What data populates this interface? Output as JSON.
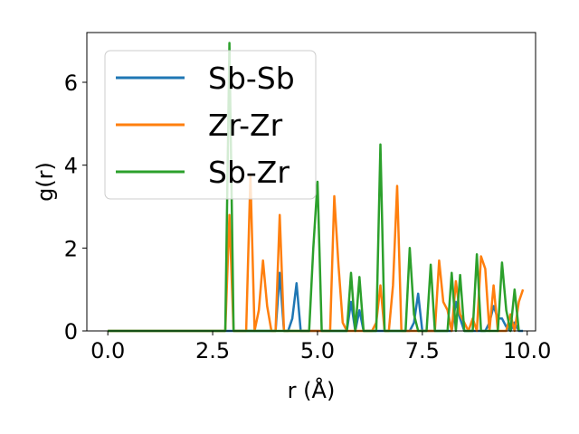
{
  "chart_data": {
    "type": "line",
    "xlabel": "r (Å)",
    "ylabel": "g(r)",
    "xlim": [
      -0.5,
      10.2
    ],
    "ylim": [
      0,
      7.2
    ],
    "xticks": [
      "0.0",
      "2.5",
      "5.0",
      "7.5",
      "10.0"
    ],
    "yticks": [
      "0",
      "2",
      "4",
      "6"
    ],
    "legend_position": "top-left",
    "series": [
      {
        "name": "Sb-Sb",
        "color": "#1f77b4",
        "x": [
          0,
          2.8,
          4.0,
          4.1,
          4.2,
          4.3,
          4.4,
          4.5,
          4.6,
          4.7,
          5.7,
          5.8,
          5.9,
          6.0,
          6.1,
          6.2,
          7.2,
          7.3,
          7.4,
          7.5,
          7.6,
          8.2,
          8.3,
          8.4,
          8.5,
          9.0,
          9.1,
          9.2,
          9.3,
          9.4,
          9.5,
          9.6,
          9.7,
          9.8,
          9.9
        ],
        "y": [
          0,
          0,
          0,
          1.4,
          0,
          0,
          0.3,
          1.15,
          0,
          0,
          0,
          0.7,
          0,
          0.5,
          0,
          0,
          0,
          0.2,
          0.9,
          0,
          0,
          0,
          0.7,
          0.3,
          0,
          0,
          0.2,
          0.6,
          0.3,
          0.3,
          0.1,
          0,
          0.2,
          0,
          0
        ]
      },
      {
        "name": "Zr-Zr",
        "color": "#ff7f0e",
        "x": [
          0,
          2.8,
          2.9,
          3.0,
          3.1,
          3.3,
          3.4,
          3.5,
          3.6,
          3.7,
          3.8,
          3.9,
          4.0,
          4.1,
          4.2,
          5.3,
          5.4,
          5.5,
          5.6,
          5.7,
          5.8,
          6.3,
          6.4,
          6.5,
          6.6,
          6.7,
          6.8,
          6.9,
          7.0,
          7.8,
          7.9,
          8.0,
          8.1,
          8.2,
          8.3,
          8.4,
          8.5,
          8.6,
          8.7,
          8.8,
          8.9,
          9.0,
          9.1,
          9.2,
          9.3,
          9.4,
          9.5,
          9.6,
          9.7,
          9.8,
          9.9
        ],
        "y": [
          0,
          0,
          2.8,
          0,
          0,
          0,
          3.75,
          0,
          0.5,
          1.7,
          0.6,
          0,
          0,
          2.8,
          0,
          0,
          3.25,
          1.6,
          0.2,
          0,
          0,
          0,
          0.2,
          1.1,
          0,
          0,
          1.1,
          3.5,
          0,
          0,
          1.7,
          0.7,
          0.5,
          0,
          1.2,
          0.4,
          0.2,
          0,
          0.3,
          0,
          1.8,
          1.5,
          0,
          1.1,
          0,
          0,
          0,
          0.4,
          0,
          0.7,
          1.0
        ]
      },
      {
        "name": "Sb-Zr",
        "color": "#2ca02c",
        "x": [
          0,
          2.8,
          2.9,
          3.0,
          3.1,
          4.8,
          4.9,
          5.0,
          5.1,
          5.7,
          5.8,
          5.9,
          6.0,
          6.1,
          6.4,
          6.5,
          6.6,
          7.1,
          7.2,
          7.3,
          7.4,
          7.6,
          7.7,
          7.8,
          8.1,
          8.2,
          8.3,
          8.4,
          8.5,
          8.7,
          8.8,
          8.9,
          9.3,
          9.4,
          9.5,
          9.6,
          9.7,
          9.8
        ],
        "y": [
          0,
          0,
          6.95,
          0,
          0,
          0,
          2.0,
          3.6,
          0,
          0,
          1.4,
          0,
          1.3,
          0,
          0,
          4.5,
          0,
          0,
          2.0,
          0.4,
          0,
          0,
          1.6,
          0,
          0,
          1.4,
          0,
          1.35,
          0,
          0,
          1.85,
          0,
          0,
          1.65,
          0.5,
          0,
          1.0,
          0
        ]
      }
    ]
  }
}
